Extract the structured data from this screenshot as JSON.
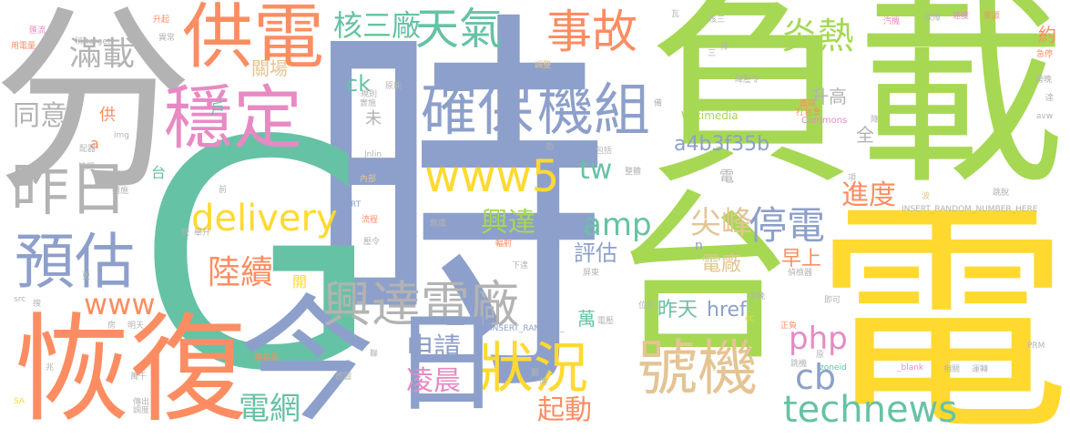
{
  "palette": {
    "green": "#a6d854",
    "yellow": "#ffd92f",
    "blue": "#8da0cb",
    "orange": "#fc8d62",
    "gray": "#b3b3b3",
    "teal": "#66c2a5",
    "pink": "#e78ac3",
    "tan": "#e5c494"
  },
  "words": [
    {
      "text": "時",
      "color": "blue"
    },
    {
      "text": "負載",
      "color": "green"
    },
    {
      "text": "電",
      "color": "yellow"
    },
    {
      "text": "台",
      "color": "green"
    },
    {
      "text": "G",
      "color": "teal"
    },
    {
      "text": "分",
      "color": "gray"
    },
    {
      "text": "恢復",
      "color": "orange"
    },
    {
      "text": "供電",
      "color": "orange"
    },
    {
      "text": "穩定",
      "color": "pink"
    },
    {
      "text": "今",
      "color": "blue"
    },
    {
      "text": "號機",
      "color": "tan"
    },
    {
      "text": "狀況",
      "color": "yellow"
    },
    {
      "text": "昨日",
      "color": "gray"
    },
    {
      "text": "預估",
      "color": "blue"
    },
    {
      "text": "確保",
      "color": "blue"
    },
    {
      "text": "機組",
      "color": "blue"
    },
    {
      "text": "興達電廠",
      "color": "gray"
    },
    {
      "text": "事故",
      "color": "orange"
    },
    {
      "text": "天氣",
      "color": "teal"
    },
    {
      "text": "www5",
      "color": "yellow"
    },
    {
      "text": "technews",
      "color": "teal"
    },
    {
      "text": "炎熱",
      "color": "green"
    },
    {
      "text": "停電",
      "color": "blue"
    },
    {
      "text": "delivery",
      "color": "yellow"
    },
    {
      "text": "滿載",
      "color": "gray"
    },
    {
      "text": "核三廠",
      "color": "teal"
    },
    {
      "text": "日",
      "color": "blue"
    },
    {
      "text": "尖峰",
      "color": "tan"
    },
    {
      "text": "陸續",
      "color": "orange"
    },
    {
      "text": "amp",
      "color": "teal"
    },
    {
      "text": "電網",
      "color": "teal"
    },
    {
      "text": "申請",
      "color": "blue"
    },
    {
      "text": "凌晨",
      "color": "pink"
    },
    {
      "text": "www",
      "color": "orange"
    },
    {
      "text": "cb",
      "color": "blue"
    },
    {
      "text": "php",
      "color": "pink"
    },
    {
      "text": "興達",
      "color": "green"
    },
    {
      "text": "進度",
      "color": "orange"
    },
    {
      "text": "起動",
      "color": "orange"
    },
    {
      "text": "a4b3f35b",
      "color": "blue"
    },
    {
      "text": "tw",
      "color": "teal"
    },
    {
      "text": "同意",
      "color": "gray"
    },
    {
      "text": "評估",
      "color": "blue"
    },
    {
      "text": "昨天",
      "color": "teal"
    },
    {
      "text": "電廠",
      "color": "tan"
    },
    {
      "text": "href",
      "color": "blue"
    },
    {
      "text": "早上",
      "color": "orange"
    },
    {
      "text": "ck",
      "color": "teal"
    },
    {
      "text": "升高",
      "color": "gray"
    },
    {
      "text": "關場",
      "color": "tan"
    },
    {
      "text": "萬",
      "color": "teal"
    },
    {
      "text": "全",
      "color": "gray"
    },
    {
      "text": "約",
      "color": "orange"
    },
    {
      "text": "戶",
      "color": "teal"
    },
    {
      "text": "供",
      "color": "orange"
    },
    {
      "text": "未",
      "color": "gray"
    },
    {
      "text": "台",
      "color": "teal"
    },
    {
      "text": "a",
      "color": "orange"
    },
    {
      "text": "開",
      "color": "yellow"
    },
    {
      "text": "電",
      "color": "gray"
    },
    {
      "text": "n",
      "color": "blue"
    },
    {
      "text": "Wikimedia",
      "color": "green"
    },
    {
      "text": "Commons",
      "color": "pink"
    },
    {
      "text": "INSERT_RANDOM_NUMBER_HERE",
      "color": "gray"
    },
    {
      "text": "INSERT_RANDOM_",
      "color": "blue"
    },
    {
      "text": "_blank",
      "color": "pink"
    },
    {
      "text": "zoneid",
      "color": "teal"
    },
    {
      "text": "target",
      "color": "gray"
    },
    {
      "text": "Jnlin",
      "color": "gray"
    },
    {
      "text": "img",
      "color": "gray"
    },
    {
      "text": "avw",
      "color": "gray"
    },
    {
      "text": "src",
      "color": "gray"
    },
    {
      "text": "PRM",
      "color": "gray"
    },
    {
      "text": "SA",
      "color": "yellow"
    },
    {
      "text": "RT",
      "color": "blue"
    },
    {
      "text": "cc",
      "color": "yellow"
    },
    {
      "text": "用電量",
      "color": "orange"
    },
    {
      "text": "匯流",
      "color": "pink"
    },
    {
      "text": "稍",
      "color": "gray"
    },
    {
      "text": "升起",
      "color": "orange"
    },
    {
      "text": "異常",
      "color": "gray"
    },
    {
      "text": "瓦",
      "color": "gray"
    },
    {
      "text": "核三",
      "color": "gray"
    },
    {
      "text": "汽機",
      "color": "pink"
    },
    {
      "text": "故障",
      "color": "gray"
    },
    {
      "text": "速度",
      "color": "pink"
    },
    {
      "text": "來源",
      "color": "orange"
    },
    {
      "text": "急停",
      "color": "orange"
    },
    {
      "text": "傍晚",
      "color": "gray"
    },
    {
      "text": "達",
      "color": "gray"
    },
    {
      "text": "打包票",
      "color": "orange"
    },
    {
      "text": "降壓令",
      "color": "gray"
    },
    {
      "text": "規則",
      "color": "gray"
    },
    {
      "text": "原能",
      "color": "gray"
    },
    {
      "text": "實施",
      "color": "gray"
    },
    {
      "text": "調整",
      "color": "tan"
    },
    {
      "text": "排",
      "color": "gray"
    },
    {
      "text": "備",
      "color": "gray"
    },
    {
      "text": "恐",
      "color": "gray"
    },
    {
      "text": "包括",
      "color": "gray"
    },
    {
      "text": "整體",
      "color": "gray"
    },
    {
      "text": "面臨",
      "color": "orange"
    },
    {
      "text": "降",
      "color": "gray"
    },
    {
      "text": "項",
      "color": "gray"
    },
    {
      "text": "跳脫",
      "color": "gray"
    },
    {
      "text": "波",
      "color": "tan"
    },
    {
      "text": "措施",
      "color": "gray"
    },
    {
      "text": "管理",
      "color": "gray"
    },
    {
      "text": "內部",
      "color": "tan"
    },
    {
      "text": "流程",
      "color": "orange"
    },
    {
      "text": "壓令",
      "color": "gray"
    },
    {
      "text": "無虞",
      "color": "gray"
    },
    {
      "text": "輻射",
      "color": "orange"
    },
    {
      "text": "屏東",
      "color": "gray"
    },
    {
      "text": "下達",
      "color": "gray"
    },
    {
      "text": "偵檢器",
      "color": "gray"
    },
    {
      "text": "今晚",
      "color": "gray"
    },
    {
      "text": "即可",
      "color": "gray"
    },
    {
      "text": "位於",
      "color": "gray"
    },
    {
      "text": "電壓",
      "color": "gray"
    },
    {
      "text": "首圖",
      "color": "gray"
    },
    {
      "text": "聯",
      "color": "gray"
    },
    {
      "text": "相關",
      "color": "gray"
    },
    {
      "text": "運轉",
      "color": "gray"
    },
    {
      "text": "跳機",
      "color": "gray"
    },
    {
      "text": "原",
      "color": "gray"
    },
    {
      "text": "正負",
      "color": "orange"
    },
    {
      "text": "轉容量",
      "color": "orange"
    },
    {
      "text": "傳出",
      "color": "gray"
    },
    {
      "text": "調度",
      "color": "gray"
    },
    {
      "text": "萬千",
      "color": "gray"
    },
    {
      "text": "明天",
      "color": "gray"
    },
    {
      "text": "兆",
      "color": "gray"
    },
    {
      "text": "房",
      "color": "gray"
    },
    {
      "text": "搜",
      "color": "gray"
    },
    {
      "text": "更",
      "color": "gray"
    },
    {
      "text": "嚴",
      "color": "gray"
    },
    {
      "text": "傳",
      "color": "gray"
    },
    {
      "text": "快",
      "color": "gray"
    },
    {
      "text": "舉升",
      "color": "gray"
    },
    {
      "text": "前",
      "color": "gray"
    },
    {
      "text": "三",
      "color": "gray"
    },
    {
      "text": "配器",
      "color": "gray"
    }
  ]
}
